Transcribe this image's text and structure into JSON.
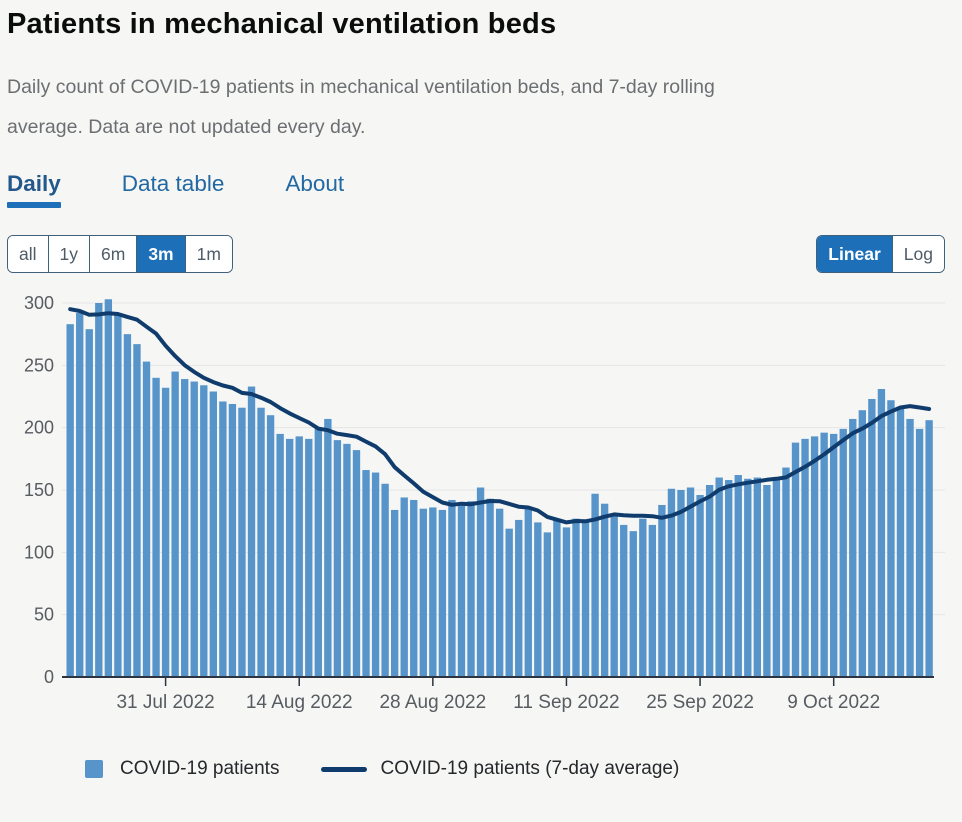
{
  "header": {
    "title": "Patients in mechanical ventilation beds",
    "subtitle": "Daily count of COVID-19 patients in mechanical ventilation beds, and 7-day rolling average. Data are not updated every day."
  },
  "tabs": {
    "selected": "Daily",
    "items": [
      {
        "label": "Daily"
      },
      {
        "label": "Data table"
      },
      {
        "label": "About"
      }
    ]
  },
  "range_selector": {
    "selected": "3m",
    "options": [
      "all",
      "1y",
      "6m",
      "3m",
      "1m"
    ]
  },
  "scale_selector": {
    "selected": "Linear",
    "options": [
      "Linear",
      "Log"
    ]
  },
  "legend": {
    "bar_label": "COVID-19 patients",
    "line_label": "COVID-19 patients (7-day average)"
  },
  "colors": {
    "bar": "#5694ca",
    "line": "#0f3c6d",
    "accent": "#1d70b8",
    "grid": "#e4e5e5",
    "axis": "#2b3440",
    "axis_label": "#575c61"
  },
  "chart_data": {
    "type": "bar",
    "title": "Patients in mechanical ventilation beds",
    "xlabel": "",
    "ylabel": "",
    "ylim": [
      0,
      310
    ],
    "y_ticks": [
      0,
      50,
      100,
      150,
      200,
      250,
      300
    ],
    "grid": "horizontal",
    "legend_position": "bottom",
    "x_tick_labels": [
      "31 Jul 2022",
      "14 Aug 2022",
      "28 Aug 2022",
      "11 Sep 2022",
      "25 Sep 2022",
      "9 Oct 2022"
    ],
    "x_tick_indices": [
      10,
      24,
      38,
      52,
      66,
      80
    ],
    "series": [
      {
        "name": "COVID-19 patients",
        "type": "bar",
        "values": [
          283,
          292,
          279,
          300,
          303,
          290,
          275,
          267,
          253,
          240,
          232,
          245,
          239,
          237,
          234,
          229,
          221,
          219,
          216,
          233,
          216,
          210,
          195,
          191,
          193,
          191,
          199,
          207,
          190,
          187,
          182,
          166,
          164,
          155,
          134,
          144,
          142,
          135,
          136,
          134,
          142,
          140,
          141,
          152,
          143,
          135,
          119,
          126,
          136,
          124,
          116,
          127,
          120,
          127,
          124,
          147,
          139,
          129,
          122,
          117,
          127,
          122,
          138,
          151,
          150,
          152,
          146,
          154,
          160,
          158,
          162,
          159,
          160,
          154,
          160,
          168,
          188,
          191,
          193,
          196,
          195,
          199,
          207,
          214,
          223,
          231,
          222,
          217,
          207,
          199,
          206
        ]
      },
      {
        "name": "COVID-19 patients (7-day average)",
        "type": "line",
        "derived": "trailing 7-day mean of the daily bar values",
        "seed_values_before_window": [
          302,
          300,
          298,
          296,
          295,
          291
        ]
      }
    ]
  }
}
